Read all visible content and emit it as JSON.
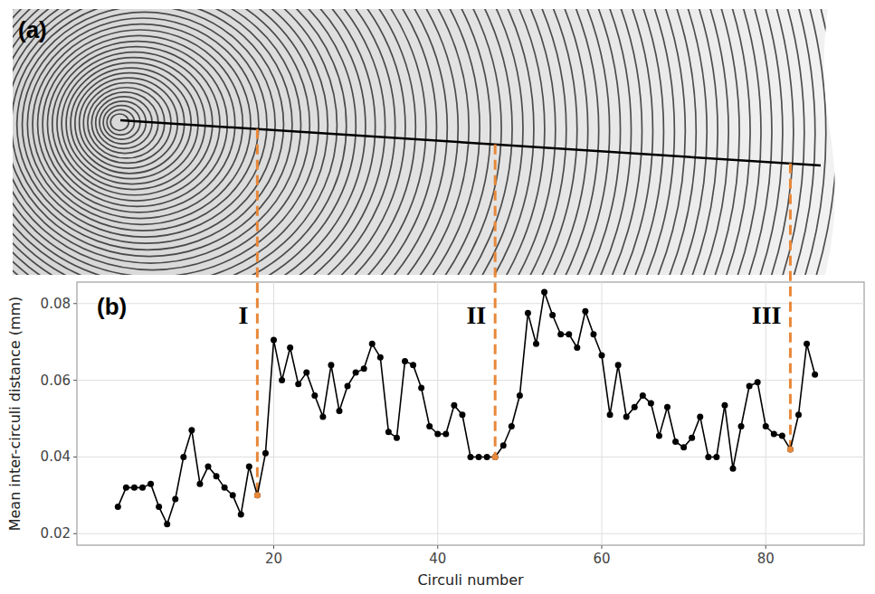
{
  "panel_a": {
    "label": "(a)"
  },
  "chart_data": {
    "type": "line",
    "label": "(b)",
    "x_label": "Circuli number",
    "y_label": "Mean inter-circuli distance (mm)",
    "x": [
      1,
      2,
      3,
      4,
      5,
      6,
      7,
      8,
      9,
      10,
      11,
      12,
      13,
      14,
      15,
      16,
      17,
      18,
      19,
      20,
      21,
      22,
      23,
      24,
      25,
      26,
      27,
      28,
      29,
      30,
      31,
      32,
      33,
      34,
      35,
      36,
      37,
      38,
      39,
      40,
      41,
      42,
      43,
      44,
      45,
      46,
      47,
      48,
      49,
      50,
      51,
      52,
      53,
      54,
      55,
      56,
      57,
      58,
      59,
      60,
      61,
      62,
      63,
      64,
      65,
      66,
      67,
      68,
      69,
      70,
      71,
      72,
      73,
      74,
      75,
      76,
      77,
      78,
      79,
      80,
      81,
      82,
      83,
      84,
      85,
      86
    ],
    "values": [
      0.027,
      0.032,
      0.032,
      0.032,
      0.033,
      0.027,
      0.0225,
      0.029,
      0.04,
      0.047,
      0.033,
      0.0375,
      0.035,
      0.032,
      0.03,
      0.025,
      0.0375,
      0.03,
      0.041,
      0.0705,
      0.06,
      0.0685,
      0.059,
      0.062,
      0.056,
      0.0505,
      0.064,
      0.052,
      0.0585,
      0.062,
      0.063,
      0.0695,
      0.066,
      0.0465,
      0.045,
      0.065,
      0.064,
      0.058,
      0.048,
      0.046,
      0.046,
      0.0535,
      0.051,
      0.04,
      0.04,
      0.04,
      0.04,
      0.043,
      0.048,
      0.056,
      0.0775,
      0.0695,
      0.083,
      0.077,
      0.072,
      0.072,
      0.0685,
      0.078,
      0.072,
      0.0665,
      0.051,
      0.064,
      0.0505,
      0.053,
      0.056,
      0.054,
      0.0455,
      0.053,
      0.044,
      0.0425,
      0.045,
      0.0505,
      0.04,
      0.04,
      0.0535,
      0.037,
      0.048,
      0.0585,
      0.0595,
      0.048,
      0.046,
      0.0455,
      0.042,
      0.051,
      0.0695,
      0.0615
    ],
    "color": "#000000",
    "marker": "circle",
    "xlim": [
      -4,
      92
    ],
    "xticks": [
      20,
      40,
      60,
      80
    ],
    "ylim": [
      0.017,
      0.0856
    ],
    "yticks": [
      0.02,
      0.04,
      0.06,
      0.08
    ],
    "grid": true,
    "annotations": [
      {
        "text": "I",
        "x": 18,
        "color": "#e8883a"
      },
      {
        "text": "II",
        "x": 47,
        "color": "#e8883a"
      },
      {
        "text": "III",
        "x": 83,
        "color": "#e8883a"
      }
    ]
  }
}
